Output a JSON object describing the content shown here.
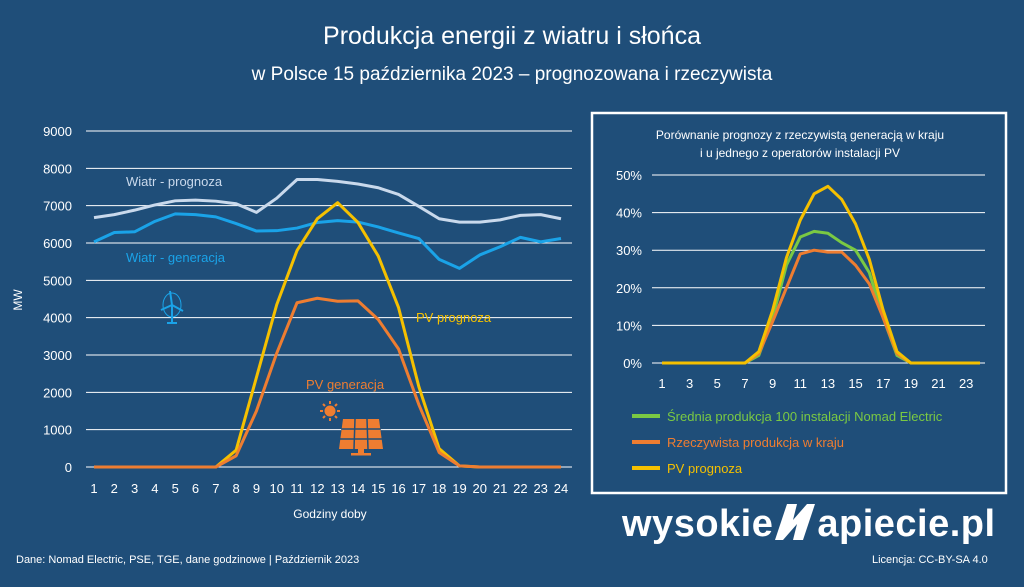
{
  "header": {
    "title": "Produkcja energii z wiatru i słońca",
    "subtitle": "w Polsce 15 października 2023 – prognozowana i rzeczywista"
  },
  "chart_data": [
    {
      "type": "line",
      "ylabel": "MW",
      "xlabel": "Godziny doby",
      "ylim": [
        0,
        9000
      ],
      "yticks": [
        "0",
        "1000",
        "2000",
        "3000",
        "4000",
        "5000",
        "6000",
        "7000",
        "8000",
        "9000"
      ],
      "x": [
        1,
        2,
        3,
        4,
        5,
        6,
        7,
        8,
        9,
        10,
        11,
        12,
        13,
        14,
        15,
        16,
        17,
        18,
        19,
        20,
        21,
        22,
        23,
        24
      ],
      "grid": true,
      "series": [
        {
          "name": "Wiatr - prognoza",
          "color": "#c9d9ec",
          "values": [
            6680,
            6760,
            6880,
            7020,
            7130,
            7150,
            7120,
            7050,
            6820,
            7200,
            7700,
            7700,
            7650,
            7580,
            7480,
            7300,
            6980,
            6650,
            6560,
            6560,
            6620,
            6740,
            6760,
            6650
          ]
        },
        {
          "name": "Wiatr - generacja",
          "color": "#1aa3e8",
          "values": [
            6030,
            6280,
            6300,
            6580,
            6780,
            6760,
            6700,
            6520,
            6320,
            6330,
            6400,
            6550,
            6600,
            6560,
            6430,
            6270,
            6120,
            5560,
            5320,
            5680,
            5900,
            6150,
            6030,
            6120
          ]
        },
        {
          "name": "PV prognoza",
          "color": "#f5c000",
          "values": [
            0,
            0,
            0,
            0,
            0,
            0,
            0,
            450,
            2400,
            4350,
            5800,
            6650,
            7080,
            6550,
            5650,
            4270,
            2150,
            490,
            30,
            0,
            0,
            0,
            0,
            0
          ]
        },
        {
          "name": "PV generacja",
          "color": "#ee7d31",
          "values": [
            0,
            0,
            0,
            0,
            0,
            0,
            0,
            300,
            1500,
            3050,
            4400,
            4520,
            4440,
            4450,
            3950,
            3160,
            1670,
            390,
            30,
            0,
            0,
            0,
            0,
            0
          ]
        }
      ]
    },
    {
      "type": "line",
      "title_line1": "Porównanie prognozy z rzeczywistą generacją w kraju",
      "title_line2": "i u jednego z operatorów instalacji PV",
      "ylim": [
        0,
        0.5
      ],
      "yticks": [
        "0%",
        "10%",
        "20%",
        "30%",
        "40%",
        "50%"
      ],
      "xticks": [
        "1",
        "3",
        "5",
        "7",
        "9",
        "11",
        "13",
        "15",
        "17",
        "19",
        "21",
        "23"
      ],
      "x": [
        1,
        2,
        3,
        4,
        5,
        6,
        7,
        8,
        9,
        10,
        11,
        12,
        13,
        14,
        15,
        16,
        17,
        18,
        19,
        20,
        21,
        22,
        23,
        24
      ],
      "grid": true,
      "legend": "bottom",
      "series": [
        {
          "name": "Średnia produkcja 100 instalacji Nomad Electric",
          "color": "#7ac943",
          "values": [
            0,
            0,
            0,
            0,
            0,
            0,
            0,
            0.02,
            0.12,
            0.26,
            0.335,
            0.35,
            0.345,
            0.32,
            0.3,
            0.24,
            0.12,
            0.02,
            0,
            0,
            0,
            0,
            0,
            0
          ]
        },
        {
          "name": "Rzeczywista produkcja w kraju",
          "color": "#ee7d31",
          "values": [
            0,
            0,
            0,
            0,
            0,
            0,
            0,
            0.025,
            0.11,
            0.2,
            0.29,
            0.3,
            0.295,
            0.295,
            0.26,
            0.21,
            0.12,
            0.025,
            0,
            0,
            0,
            0,
            0,
            0
          ]
        },
        {
          "name": "PV prognoza",
          "color": "#f5c000",
          "values": [
            0,
            0,
            0,
            0,
            0,
            0,
            0,
            0.03,
            0.14,
            0.28,
            0.38,
            0.45,
            0.47,
            0.435,
            0.37,
            0.275,
            0.14,
            0.03,
            0,
            0,
            0,
            0,
            0,
            0
          ]
        }
      ]
    }
  ],
  "icons": {
    "wind": "wind-turbine-icon",
    "solar": "solar-panel-icon",
    "sun": "sun-icon"
  },
  "brand": {
    "part1": "wysokie",
    "part2": "apiecie.pl"
  },
  "footer": {
    "source": "Dane: Nomad Electric, PSE, TGE, dane godzinowe   |   Październik 2023",
    "license": "Licencja: CC-BY-SA 4.0"
  }
}
